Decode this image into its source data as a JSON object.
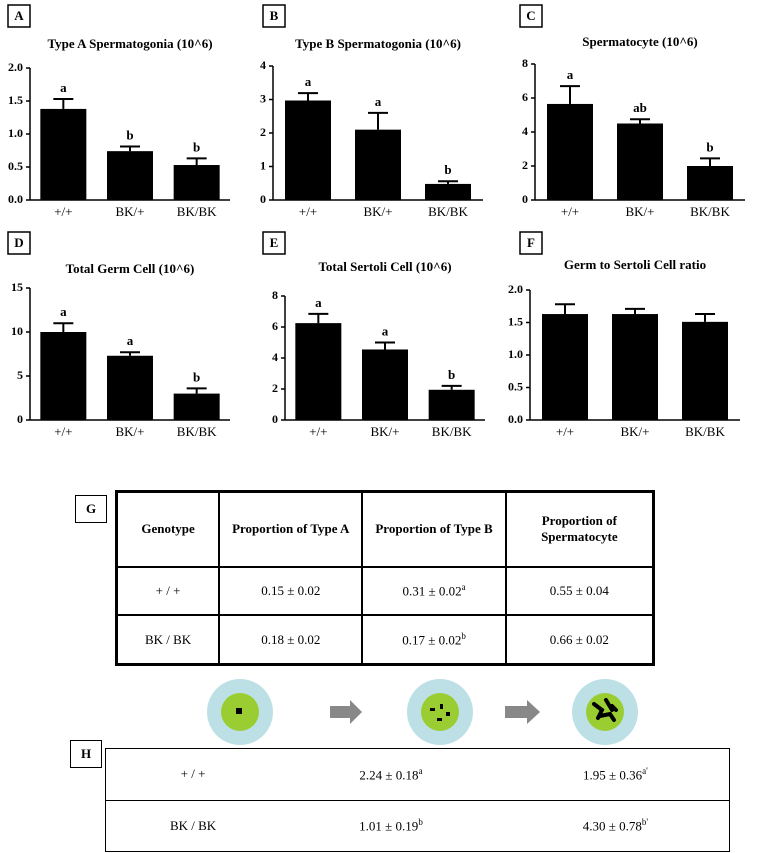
{
  "chart_data": [
    {
      "type": "bar",
      "panel": "A",
      "title": "Type A Spermatogonia (10^6)",
      "categories": [
        "+/+",
        "BK/+",
        "BK/BK"
      ],
      "values": [
        1.38,
        0.74,
        0.53
      ],
      "errors": [
        0.15,
        0.07,
        0.1
      ],
      "letters": [
        "a",
        "b",
        "b"
      ],
      "color": "#000000",
      "ylim": [
        0,
        2
      ],
      "yticks": [
        {
          "value": 0,
          "label": "0.0"
        },
        {
          "value": 0.5,
          "label": "0.5"
        },
        {
          "value": 1,
          "label": "1.0"
        },
        {
          "value": 1.5,
          "label": "1.5"
        },
        {
          "value": 2,
          "label": "2.0"
        }
      ]
    },
    {
      "type": "bar",
      "panel": "B",
      "title": "Type B Spermatogonia (10^6)",
      "categories": [
        "+/+",
        "BK/+",
        "BK/BK"
      ],
      "values": [
        2.97,
        2.1,
        0.48
      ],
      "errors": [
        0.22,
        0.5,
        0.08
      ],
      "letters": [
        "a",
        "a",
        "b"
      ],
      "color": "#000000",
      "ylim": [
        0,
        4
      ],
      "yticks": [
        0,
        1,
        2,
        3,
        4
      ]
    },
    {
      "type": "bar",
      "panel": "C",
      "title": "Spermatocyte (10^6)",
      "categories": [
        "+/+",
        "BK/+",
        "BK/BK"
      ],
      "values": [
        5.65,
        4.5,
        2.0
      ],
      "errors": [
        1.05,
        0.25,
        0.45
      ],
      "letters": [
        "a",
        "ab",
        "b"
      ],
      "color": "#000000",
      "ylim": [
        0,
        8
      ],
      "yticks": [
        0,
        2,
        4,
        6,
        8
      ]
    },
    {
      "type": "bar",
      "panel": "D",
      "title": "Total Germ Cell (10^6)",
      "categories": [
        "+/+",
        "BK/+",
        "BK/BK"
      ],
      "values": [
        10.0,
        7.3,
        3.0
      ],
      "errors": [
        1.0,
        0.4,
        0.6
      ],
      "letters": [
        "a",
        "a",
        "b"
      ],
      "color": "#000000",
      "ylim": [
        0,
        15
      ],
      "yticks": [
        0,
        5,
        10,
        15
      ]
    },
    {
      "type": "bar",
      "panel": "E",
      "title": "Total Sertoli Cell (10^6)",
      "categories": [
        "+/+",
        "BK/+",
        "BK/BK"
      ],
      "values": [
        6.25,
        4.55,
        1.95
      ],
      "errors": [
        0.6,
        0.45,
        0.25
      ],
      "letters": [
        "a",
        "a",
        "b"
      ],
      "color": "#000000",
      "ylim": [
        0,
        8
      ],
      "yticks": [
        0,
        2,
        4,
        6,
        8
      ]
    },
    {
      "type": "bar",
      "panel": "F",
      "title": "Germ to Sertoli Cell ratio",
      "categories": [
        "+/+",
        "BK/+",
        "BK/BK"
      ],
      "values": [
        1.63,
        1.63,
        1.51
      ],
      "errors": [
        0.15,
        0.08,
        0.12
      ],
      "color": "#000000",
      "ylim": [
        0,
        2
      ],
      "yticks": [
        {
          "value": 0,
          "label": "0.0"
        },
        {
          "value": 0.5,
          "label": "0.5"
        },
        {
          "value": 1,
          "label": "1.0"
        },
        {
          "value": 1.5,
          "label": "1.5"
        },
        {
          "value": 2,
          "label": "2.0"
        }
      ]
    }
  ],
  "table_g": {
    "label": "G",
    "header": [
      "Genotype",
      "Proportion of Type A",
      "Proportion of Type B",
      "Proportion of Spermatocyte"
    ],
    "rows": [
      [
        "+ / +",
        "0.15 ± 0.02",
        {
          "text": "0.31  ± 0.02",
          "sup": "a"
        },
        "0.55 ± 0.04"
      ],
      [
        "BK / BK",
        "0.18 ± 0.02",
        {
          "text": "0.17 ± 0.02",
          "sup": "b"
        },
        "0.66 ± 0.02"
      ]
    ]
  },
  "table_h": {
    "label": "H",
    "rows": [
      [
        "+ / +",
        {
          "text": "2.24 ± 0.18",
          "sup": "a"
        },
        {
          "text": "1.95 ± 0.36",
          "sup": "a'"
        }
      ],
      [
        "BK / BK",
        {
          "text": "1.01 ± 0.19",
          "sup": "b"
        },
        {
          "text": "4.30 ± 0.78",
          "sup": "b'"
        }
      ]
    ]
  }
}
